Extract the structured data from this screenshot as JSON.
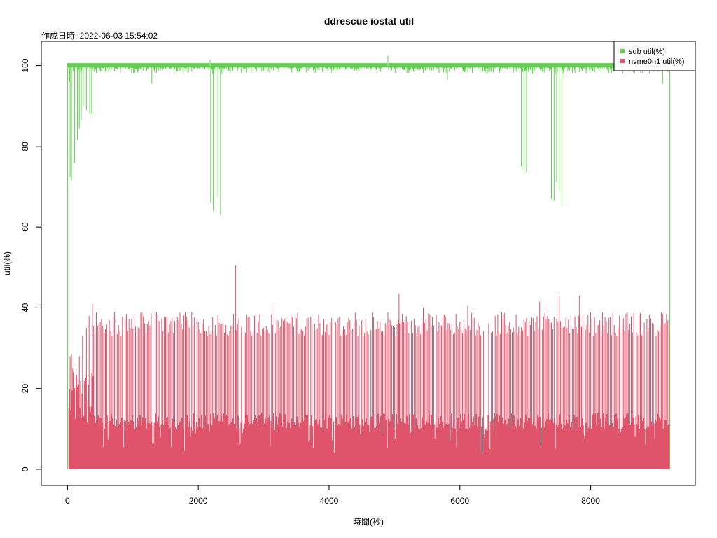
{
  "chart_data": {
    "type": "line",
    "title": "ddrescue iostat util",
    "subtitle": "作成日時: 2022-06-03 15:54:02",
    "xlabel": "時間(秒)",
    "ylabel": "util(%)",
    "xlim": [
      -400,
      9600
    ],
    "ylim": [
      -4,
      106
    ],
    "xticks": [
      0,
      2000,
      4000,
      6000,
      8000
    ],
    "yticks": [
      0,
      20,
      40,
      60,
      80,
      100
    ],
    "x_range": [
      0,
      9210
    ],
    "grid": false,
    "legend_position": "top-right",
    "series": [
      {
        "name": "sdb util(%)",
        "color": "#61D04F",
        "baseline": 100,
        "dips": [
          {
            "x": 0,
            "y": 0
          },
          {
            "x": 30,
            "y": 96
          },
          {
            "x": 40,
            "y": 72.5
          },
          {
            "x": 60,
            "y": 71.5
          },
          {
            "x": 110,
            "y": 76
          },
          {
            "x": 150,
            "y": 81.5
          },
          {
            "x": 180,
            "y": 84.5
          },
          {
            "x": 210,
            "y": 86.5
          },
          {
            "x": 240,
            "y": 90
          },
          {
            "x": 255,
            "y": 102.5
          },
          {
            "x": 290,
            "y": 89
          },
          {
            "x": 340,
            "y": 88
          },
          {
            "x": 370,
            "y": 88
          },
          {
            "x": 1290,
            "y": 95.5
          },
          {
            "x": 2180,
            "y": 101.5
          },
          {
            "x": 2190,
            "y": 66
          },
          {
            "x": 2230,
            "y": 64
          },
          {
            "x": 2300,
            "y": 67.5
          },
          {
            "x": 2340,
            "y": 63
          },
          {
            "x": 4900,
            "y": 102.5
          },
          {
            "x": 5810,
            "y": 96.5
          },
          {
            "x": 6940,
            "y": 75
          },
          {
            "x": 6980,
            "y": 74
          },
          {
            "x": 7020,
            "y": 73.5
          },
          {
            "x": 7400,
            "y": 67
          },
          {
            "x": 7440,
            "y": 66.5
          },
          {
            "x": 7480,
            "y": 71
          },
          {
            "x": 7520,
            "y": 69
          },
          {
            "x": 7560,
            "y": 65
          },
          {
            "x": 9100,
            "y": 95.5
          },
          {
            "x": 9210,
            "y": 0
          }
        ]
      },
      {
        "name": "nvme0n1 util(%)",
        "color": "#DF536B",
        "baseline": 0,
        "peaks": [
          {
            "x": 20,
            "y": 15
          },
          {
            "x": 40,
            "y": 28
          },
          {
            "x": 60,
            "y": 28.5
          },
          {
            "x": 90,
            "y": 24
          },
          {
            "x": 130,
            "y": 25
          },
          {
            "x": 180,
            "y": 28
          },
          {
            "x": 230,
            "y": 33
          },
          {
            "x": 290,
            "y": 35
          },
          {
            "x": 330,
            "y": 38
          },
          {
            "x": 380,
            "y": 41
          },
          {
            "x": 2570,
            "y": 50.5
          },
          {
            "x": 3160,
            "y": 40.5
          },
          {
            "x": 5070,
            "y": 43.5
          },
          {
            "x": 5440,
            "y": 40
          },
          {
            "x": 6120,
            "y": 40.5
          },
          {
            "x": 7220,
            "y": 41.5
          },
          {
            "x": 7520,
            "y": 43
          },
          {
            "x": 7830,
            "y": 43
          },
          {
            "x": 9210,
            "y": 33.5
          }
        ],
        "typical_peak_range": [
          33,
          39
        ],
        "typical_low_range": [
          10,
          14
        ]
      }
    ]
  }
}
